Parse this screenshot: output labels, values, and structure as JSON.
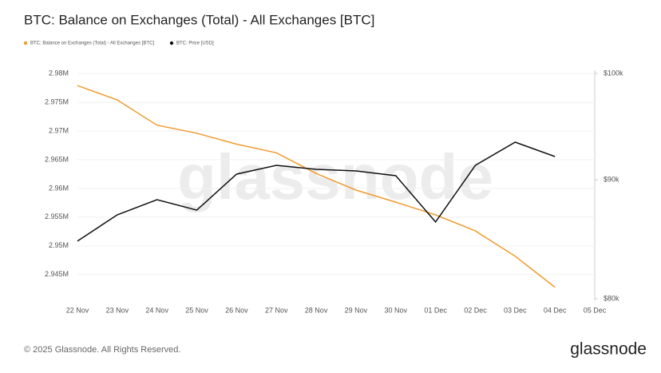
{
  "chart_data": {
    "type": "line",
    "title": "BTC: Balance on Exchanges (Total) - All Exchanges [BTC]",
    "categories": [
      "22 Nov",
      "23 Nov",
      "24 Nov",
      "25 Nov",
      "26 Nov",
      "27 Nov",
      "28 Nov",
      "29 Nov",
      "30 Nov",
      "01 Dec",
      "02 Dec",
      "03 Dec",
      "04 Dec",
      "05 Dec"
    ],
    "series": [
      {
        "name": "BTC: Balance on Exchanges (Total) - All Exchanges [BTC]",
        "color": "#f09b2e",
        "axis": "y",
        "values": [
          2977900,
          2975400,
          2971000,
          2969600,
          2967700,
          2966200,
          2962600,
          2959700,
          2957600,
          2955400,
          2952600,
          2948200,
          2942800,
          null
        ]
      },
      {
        "name": "BTC: Price [USD]",
        "color": "#111111",
        "axis": "y2",
        "values": [
          84700,
          86930,
          88250,
          87340,
          90510,
          91300,
          90940,
          90800,
          90370,
          86320,
          91300,
          93420,
          92100,
          null
        ]
      }
    ],
    "ylim": [
      2940800,
      2980000
    ],
    "yticks": [
      {
        "value": 2945000,
        "label": "2.945M"
      },
      {
        "value": 2950000,
        "label": "2.95M"
      },
      {
        "value": 2955000,
        "label": "2.955M"
      },
      {
        "value": 2960000,
        "label": "2.96M"
      },
      {
        "value": 2965000,
        "label": "2.965M"
      },
      {
        "value": 2970000,
        "label": "2.97M"
      },
      {
        "value": 2975000,
        "label": "2.975M"
      },
      {
        "value": 2980000,
        "label": "2.98M"
      }
    ],
    "y2lim": [
      80000,
      100000
    ],
    "y2ticks": [
      {
        "value": 80000,
        "label": "$80k"
      },
      {
        "value": 90000,
        "label": "$90k"
      },
      {
        "value": 100000,
        "label": "$100k"
      }
    ],
    "y2log": true,
    "grid": true,
    "watermark": "glassnode",
    "footer": "© 2025 Glassnode. All Rights Reserved.",
    "logo": "glassnode"
  }
}
